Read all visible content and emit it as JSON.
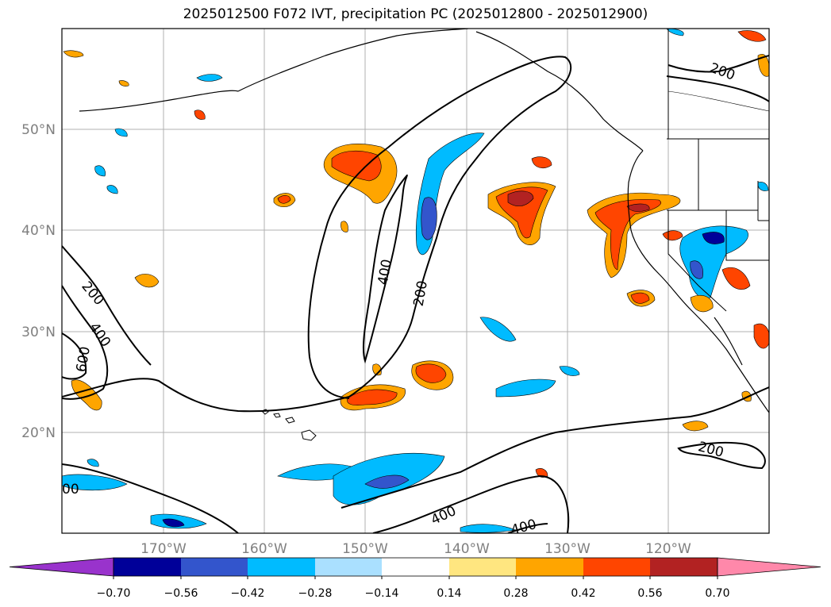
{
  "title": "2025012500 F072 IVT, precipitation PC (2025012800 - 2025012900)",
  "map": {
    "lat_ticks": [
      "50°N",
      "40°N",
      "30°N",
      "20°N"
    ],
    "lon_ticks": [
      "170°W",
      "160°W",
      "150°W",
      "140°W",
      "130°W",
      "120°W"
    ],
    "extent": {
      "lon_min": -180,
      "lon_max": -110,
      "lat_min": 10,
      "lat_max": 60
    },
    "gridlines": true
  },
  "ivt_contour_labels": [
    "200",
    "400",
    "600",
    "400",
    "200",
    "200",
    "400",
    "400",
    "200",
    "00"
  ],
  "colorbar": {
    "tick_labels": [
      "−0.70",
      "−0.56",
      "−0.42",
      "−0.28",
      "−0.14",
      "0.14",
      "0.28",
      "0.42",
      "0.56",
      "0.70"
    ],
    "colors": [
      "#9933cc",
      "#000099",
      "#3355cc",
      "#00bbff",
      "#aae0ff",
      "#ffffff",
      "#ffe680",
      "#ffa500",
      "#ff4500",
      "#b22222",
      "#ff88aa"
    ]
  }
}
